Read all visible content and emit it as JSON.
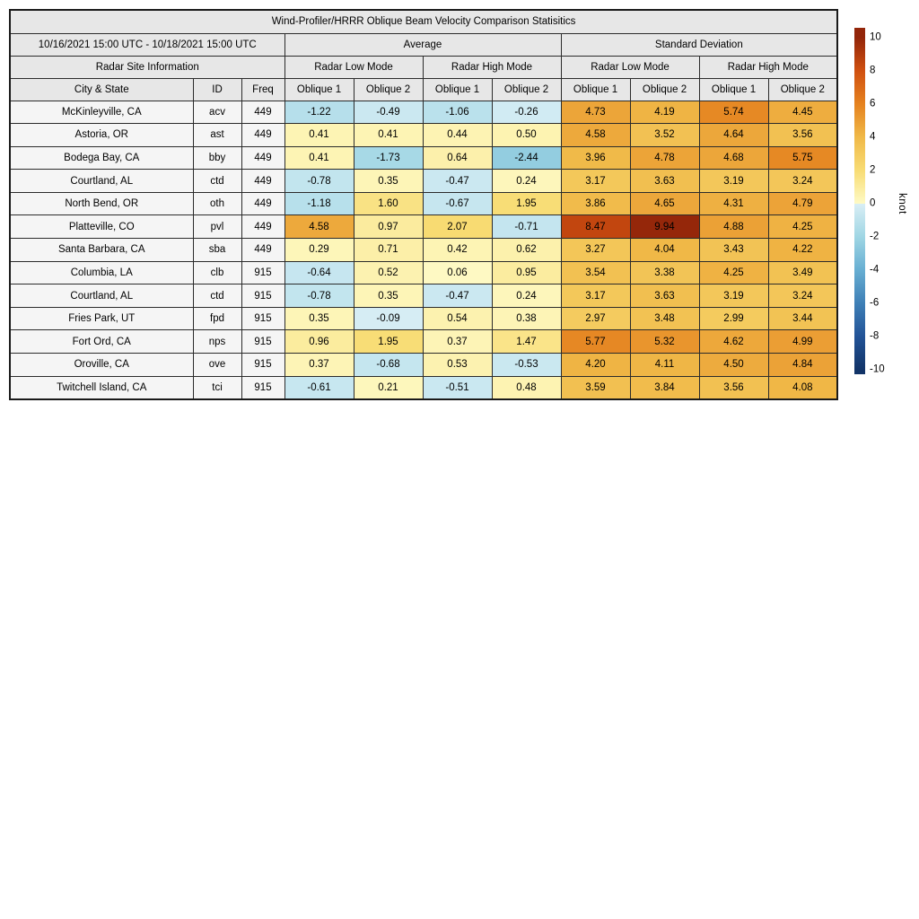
{
  "table": {
    "title": "Wind-Profiler/HRRR Oblique Beam Velocity Comparison Statisitics",
    "date_range": "10/16/2021 15:00 UTC - 10/18/2021 15:00 UTC",
    "section_headers": {
      "average": "Average",
      "std": "Standard Deviation"
    },
    "site_info": "Radar Site Information",
    "mode_headers": [
      "Radar Low Mode",
      "Radar High Mode",
      "Radar Low Mode",
      "Radar High Mode"
    ],
    "column_headers": [
      "City & State",
      "ID",
      "Freq",
      "Oblique 1",
      "Oblique 2",
      "Oblique 1",
      "Oblique 2",
      "Oblique 1",
      "Oblique 2",
      "Oblique 1",
      "Oblique 2"
    ]
  },
  "colorbar": {
    "label": "knot",
    "vmin": -10,
    "vmax": 10,
    "ticks": [
      10,
      8,
      6,
      4,
      2,
      0,
      -2,
      -4,
      -6,
      -8,
      -10
    ],
    "negative_stops": [
      [
        -10,
        "#123468"
      ],
      [
        -8,
        "#225397"
      ],
      [
        -6,
        "#3e7fb6"
      ],
      [
        -4,
        "#67aed2"
      ],
      [
        -2,
        "#9fd6e4"
      ],
      [
        0,
        "#d9eef5"
      ]
    ],
    "positive_stops": [
      [
        0,
        "#fefac5"
      ],
      [
        2,
        "#f8dc74"
      ],
      [
        4,
        "#f0b948"
      ],
      [
        6,
        "#e5821f"
      ],
      [
        8,
        "#d05010"
      ],
      [
        10,
        "#93260a"
      ]
    ]
  },
  "chart_data": {
    "type": "table",
    "title": "Wind-Profiler/HRRR Oblique Beam Velocity Comparison Statisitics",
    "date_range": "10/16/2021 15:00 UTC - 10/18/2021 15:00 UTC",
    "value_columns": [
      "Average Radar Low Mode Oblique 1",
      "Average Radar Low Mode Oblique 2",
      "Average Radar High Mode Oblique 1",
      "Average Radar High Mode Oblique 2",
      "Std Dev Radar Low Mode Oblique 1",
      "Std Dev Radar Low Mode Oblique 2",
      "Std Dev Radar High Mode Oblique 1",
      "Std Dev Radar High Mode Oblique 2"
    ],
    "units": "knot",
    "color_range": [
      -10,
      10
    ],
    "rows": [
      {
        "city": "McKinleyville, CA",
        "id": "acv",
        "freq": 449,
        "values": [
          -1.22,
          -0.49,
          -1.06,
          -0.26,
          4.73,
          4.19,
          5.74,
          4.45
        ]
      },
      {
        "city": "Astoria, OR",
        "id": "ast",
        "freq": 449,
        "values": [
          0.41,
          0.41,
          0.44,
          0.5,
          4.58,
          3.52,
          4.64,
          3.56
        ]
      },
      {
        "city": "Bodega Bay, CA",
        "id": "bby",
        "freq": 449,
        "values": [
          0.41,
          -1.73,
          0.64,
          -2.44,
          3.96,
          4.78,
          4.68,
          5.75
        ]
      },
      {
        "city": "Courtland, AL",
        "id": "ctd",
        "freq": 449,
        "values": [
          -0.78,
          0.35,
          -0.47,
          0.24,
          3.17,
          3.63,
          3.19,
          3.24
        ]
      },
      {
        "city": "North Bend, OR",
        "id": "oth",
        "freq": 449,
        "values": [
          -1.18,
          1.6,
          -0.67,
          1.95,
          3.86,
          4.65,
          4.31,
          4.79
        ]
      },
      {
        "city": "Platteville, CO",
        "id": "pvl",
        "freq": 449,
        "values": [
          4.58,
          0.97,
          2.07,
          -0.71,
          8.47,
          9.94,
          4.88,
          4.25
        ]
      },
      {
        "city": "Santa Barbara, CA",
        "id": "sba",
        "freq": 449,
        "values": [
          0.29,
          0.71,
          0.42,
          0.62,
          3.27,
          4.04,
          3.43,
          4.22
        ]
      },
      {
        "city": "Columbia, LA",
        "id": "clb",
        "freq": 915,
        "values": [
          -0.64,
          0.52,
          0.06,
          0.95,
          3.54,
          3.38,
          4.25,
          3.49
        ]
      },
      {
        "city": "Courtland, AL",
        "id": "ctd",
        "freq": 915,
        "values": [
          -0.78,
          0.35,
          -0.47,
          0.24,
          3.17,
          3.63,
          3.19,
          3.24
        ]
      },
      {
        "city": "Fries Park, UT",
        "id": "fpd",
        "freq": 915,
        "values": [
          0.35,
          -0.09,
          0.54,
          0.38,
          2.97,
          3.48,
          2.99,
          3.44
        ]
      },
      {
        "city": "Fort Ord, CA",
        "id": "nps",
        "freq": 915,
        "values": [
          0.96,
          1.95,
          0.37,
          1.47,
          5.77,
          5.32,
          4.62,
          4.99
        ]
      },
      {
        "city": "Oroville, CA",
        "id": "ove",
        "freq": 915,
        "values": [
          0.37,
          -0.68,
          0.53,
          -0.53,
          4.2,
          4.11,
          4.5,
          4.84
        ]
      },
      {
        "city": "Twitchell Island, CA",
        "id": "tci",
        "freq": 915,
        "values": [
          -0.61,
          0.21,
          -0.51,
          0.48,
          3.59,
          3.84,
          3.56,
          4.08
        ]
      }
    ]
  }
}
